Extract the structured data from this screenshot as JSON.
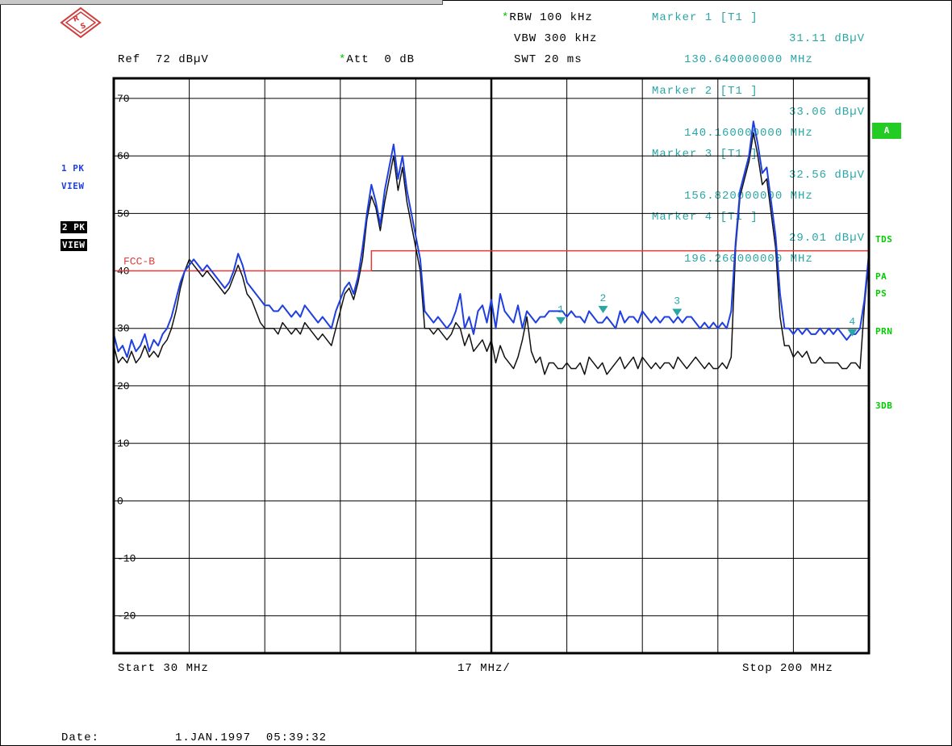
{
  "header": {
    "rbw": "RBW 100 kHz",
    "vbw": "VBW 300 kHz",
    "swt": "SWT 20 ms",
    "ref": "Ref  72 dBµV",
    "att": "Att  0 dB"
  },
  "markers": [
    {
      "title": "Marker 1 [T1 ]",
      "level": "31.11 dBµV",
      "freq": "130.640000000 MHz"
    },
    {
      "title": "Marker 2 [T1 ]",
      "level": "33.06 dBµV",
      "freq": "140.160000000 MHz"
    },
    {
      "title": "Marker 3 [T1 ]",
      "level": "32.56 dBµV",
      "freq": "156.820000000 MHz"
    },
    {
      "title": "Marker 4 [T1 ]",
      "level": "29.01 dBµV",
      "freq": "196.260000000 MHz"
    }
  ],
  "side_left": {
    "trace1": "1 PK",
    "view1": "VIEW",
    "trace2": "2 PK",
    "view2": "VIEW"
  },
  "side_right": {
    "a": "A",
    "tds": "TDS",
    "pa": "PA",
    "ps": "PS",
    "prn": "PRN",
    "db3": "3DB"
  },
  "footer": {
    "start": "Start 30 MHz",
    "span": "17 MHz/",
    "stop": "Stop 200 MHz",
    "date_label": "Date:",
    "date_value": "1.JAN.1997  05:39:32"
  },
  "colors": {
    "trace_blue": "#1f3fe0",
    "trace_black": "#111111",
    "limit_red": "#e23a3a",
    "marker_teal": "#2aa6a6",
    "softkey_green": "#22cc22"
  },
  "chart_data": {
    "type": "line",
    "xlim": [
      30,
      200
    ],
    "ylim": [
      -30,
      72
    ],
    "x_unit": "MHz",
    "y_unit": "dBµV",
    "y_ticks": [
      70,
      60,
      50,
      40,
      30,
      20,
      10,
      0,
      -10,
      -20
    ],
    "grid": true,
    "limit_line": {
      "name": "FCC-B",
      "points": [
        [
          30,
          40
        ],
        [
          88,
          40
        ],
        [
          88,
          43.5
        ],
        [
          200,
          43.5
        ]
      ]
    },
    "markers": [
      {
        "id": "1",
        "x": 130.64,
        "y": 31.11
      },
      {
        "id": "2",
        "x": 140.16,
        "y": 33.06
      },
      {
        "id": "3",
        "x": 156.82,
        "y": 32.56
      },
      {
        "id": "4",
        "x": 196.26,
        "y": 29.01
      }
    ],
    "series": [
      {
        "x": [
          30,
          31,
          32,
          33,
          34,
          35,
          36,
          37,
          38,
          39,
          40,
          41,
          42,
          43,
          44,
          45,
          46,
          47,
          48,
          49,
          50,
          51,
          52,
          53,
          54,
          55,
          56,
          57,
          58,
          59,
          60,
          61,
          62,
          63,
          64,
          65,
          66,
          67,
          68,
          69,
          70,
          71,
          72,
          73,
          74,
          75,
          76,
          77,
          78,
          79,
          80,
          81,
          82,
          83,
          84,
          85,
          86,
          87,
          88,
          89,
          90,
          91,
          92,
          93,
          94,
          95,
          96,
          97,
          98,
          99,
          100,
          101,
          102,
          103,
          104,
          105,
          106,
          107,
          108,
          109,
          110,
          111,
          112,
          113,
          114,
          115,
          116,
          117,
          118,
          119,
          120,
          121,
          122,
          123,
          124,
          125,
          126,
          127,
          128,
          129,
          130,
          131,
          132,
          133,
          134,
          135,
          136,
          137,
          138,
          139,
          140,
          141,
          142,
          143,
          144,
          145,
          146,
          147,
          148,
          149,
          150,
          151,
          152,
          153,
          154,
          155,
          156,
          157,
          158,
          159,
          160,
          161,
          162,
          163,
          164,
          165,
          166,
          167,
          168,
          169,
          170,
          171,
          172,
          173,
          174,
          175,
          176,
          177,
          178,
          179,
          180,
          181,
          182,
          183,
          184,
          185,
          186,
          187,
          188,
          189,
          190,
          191,
          192,
          193,
          194,
          195,
          196,
          197,
          198,
          199,
          200
        ],
        "y": [
          29,
          26,
          27,
          25,
          28,
          26,
          27,
          29,
          26,
          28,
          27,
          29,
          30,
          32,
          35,
          38,
          40,
          41,
          42,
          41,
          40,
          41,
          40,
          39,
          38,
          37,
          38,
          40,
          43,
          41,
          38,
          37,
          36,
          35,
          34,
          34,
          33,
          33,
          34,
          33,
          32,
          33,
          32,
          34,
          33,
          32,
          31,
          32,
          31,
          30,
          33,
          35,
          37,
          38,
          36,
          39,
          44,
          50,
          55,
          52,
          48,
          54,
          58,
          62,
          56,
          60,
          54,
          50,
          46,
          42,
          33,
          32,
          31,
          32,
          31,
          30,
          31,
          33,
          36,
          30,
          32,
          29,
          33,
          34,
          31,
          35,
          30,
          36,
          33,
          32,
          31,
          34,
          30,
          33,
          32,
          31,
          32,
          32,
          33,
          33,
          33,
          33,
          32,
          33,
          32,
          32,
          31,
          33,
          32,
          31,
          31,
          32,
          31,
          30,
          33,
          31,
          32,
          32,
          31,
          33,
          32,
          31,
          32,
          31,
          32,
          32,
          31,
          32,
          31,
          32,
          32,
          31,
          30,
          31,
          30,
          31,
          30,
          31,
          30,
          33,
          45,
          54,
          57,
          60,
          66,
          62,
          57,
          58,
          52,
          46,
          36,
          30,
          30,
          29,
          30,
          29,
          30,
          29,
          29,
          30,
          29,
          30,
          29,
          30,
          29,
          28,
          29,
          29,
          30,
          35,
          43
        ]
      },
      {
        "x": [
          30,
          31,
          32,
          33,
          34,
          35,
          36,
          37,
          38,
          39,
          40,
          41,
          42,
          43,
          44,
          45,
          46,
          47,
          48,
          49,
          50,
          51,
          52,
          53,
          54,
          55,
          56,
          57,
          58,
          59,
          60,
          61,
          62,
          63,
          64,
          65,
          66,
          67,
          68,
          69,
          70,
          71,
          72,
          73,
          74,
          75,
          76,
          77,
          78,
          79,
          80,
          81,
          82,
          83,
          84,
          85,
          86,
          87,
          88,
          89,
          90,
          91,
          92,
          93,
          94,
          95,
          96,
          97,
          98,
          99,
          100,
          101,
          102,
          103,
          104,
          105,
          106,
          107,
          108,
          109,
          110,
          111,
          112,
          113,
          114,
          115,
          116,
          117,
          118,
          119,
          120,
          121,
          122,
          123,
          124,
          125,
          126,
          127,
          128,
          129,
          130,
          131,
          132,
          133,
          134,
          135,
          136,
          137,
          138,
          139,
          140,
          141,
          142,
          143,
          144,
          145,
          146,
          147,
          148,
          149,
          150,
          151,
          152,
          153,
          154,
          155,
          156,
          157,
          158,
          159,
          160,
          161,
          162,
          163,
          164,
          165,
          166,
          167,
          168,
          169,
          170,
          171,
          172,
          173,
          174,
          175,
          176,
          177,
          178,
          179,
          180,
          181,
          182,
          183,
          184,
          185,
          186,
          187,
          188,
          189,
          190,
          191,
          192,
          193,
          194,
          195,
          196,
          197,
          198,
          199,
          200
        ],
        "y": [
          27,
          24,
          25,
          24,
          26,
          24,
          25,
          27,
          25,
          26,
          25,
          27,
          28,
          30,
          33,
          37,
          40,
          42,
          41,
          40,
          39,
          40,
          39,
          38,
          37,
          36,
          37,
          39,
          41,
          39,
          36,
          35,
          33,
          31,
          30,
          30,
          30,
          29,
          31,
          30,
          29,
          30,
          29,
          31,
          30,
          29,
          28,
          29,
          28,
          27,
          30,
          33,
          36,
          37,
          35,
          38,
          42,
          49,
          53,
          51,
          47,
          52,
          56,
          60,
          54,
          58,
          52,
          48,
          44,
          40,
          30,
          30,
          29,
          30,
          29,
          28,
          29,
          31,
          30,
          27,
          29,
          26,
          27,
          28,
          26,
          28,
          24,
          27,
          25,
          24,
          23,
          25,
          28,
          32,
          26,
          24,
          25,
          22,
          24,
          24,
          23,
          23,
          24,
          23,
          23,
          24,
          22,
          25,
          24,
          23,
          24,
          22,
          23,
          24,
          25,
          23,
          24,
          25,
          23,
          25,
          24,
          23,
          24,
          23,
          24,
          24,
          23,
          25,
          24,
          23,
          24,
          25,
          24,
          23,
          24,
          23,
          23,
          24,
          23,
          25,
          44,
          53,
          56,
          59,
          64,
          60,
          55,
          56,
          50,
          44,
          32,
          27,
          27,
          25,
          26,
          25,
          26,
          24,
          24,
          25,
          24,
          24,
          24,
          24,
          23,
          23,
          24,
          24,
          23,
          34,
          42
        ]
      }
    ]
  }
}
